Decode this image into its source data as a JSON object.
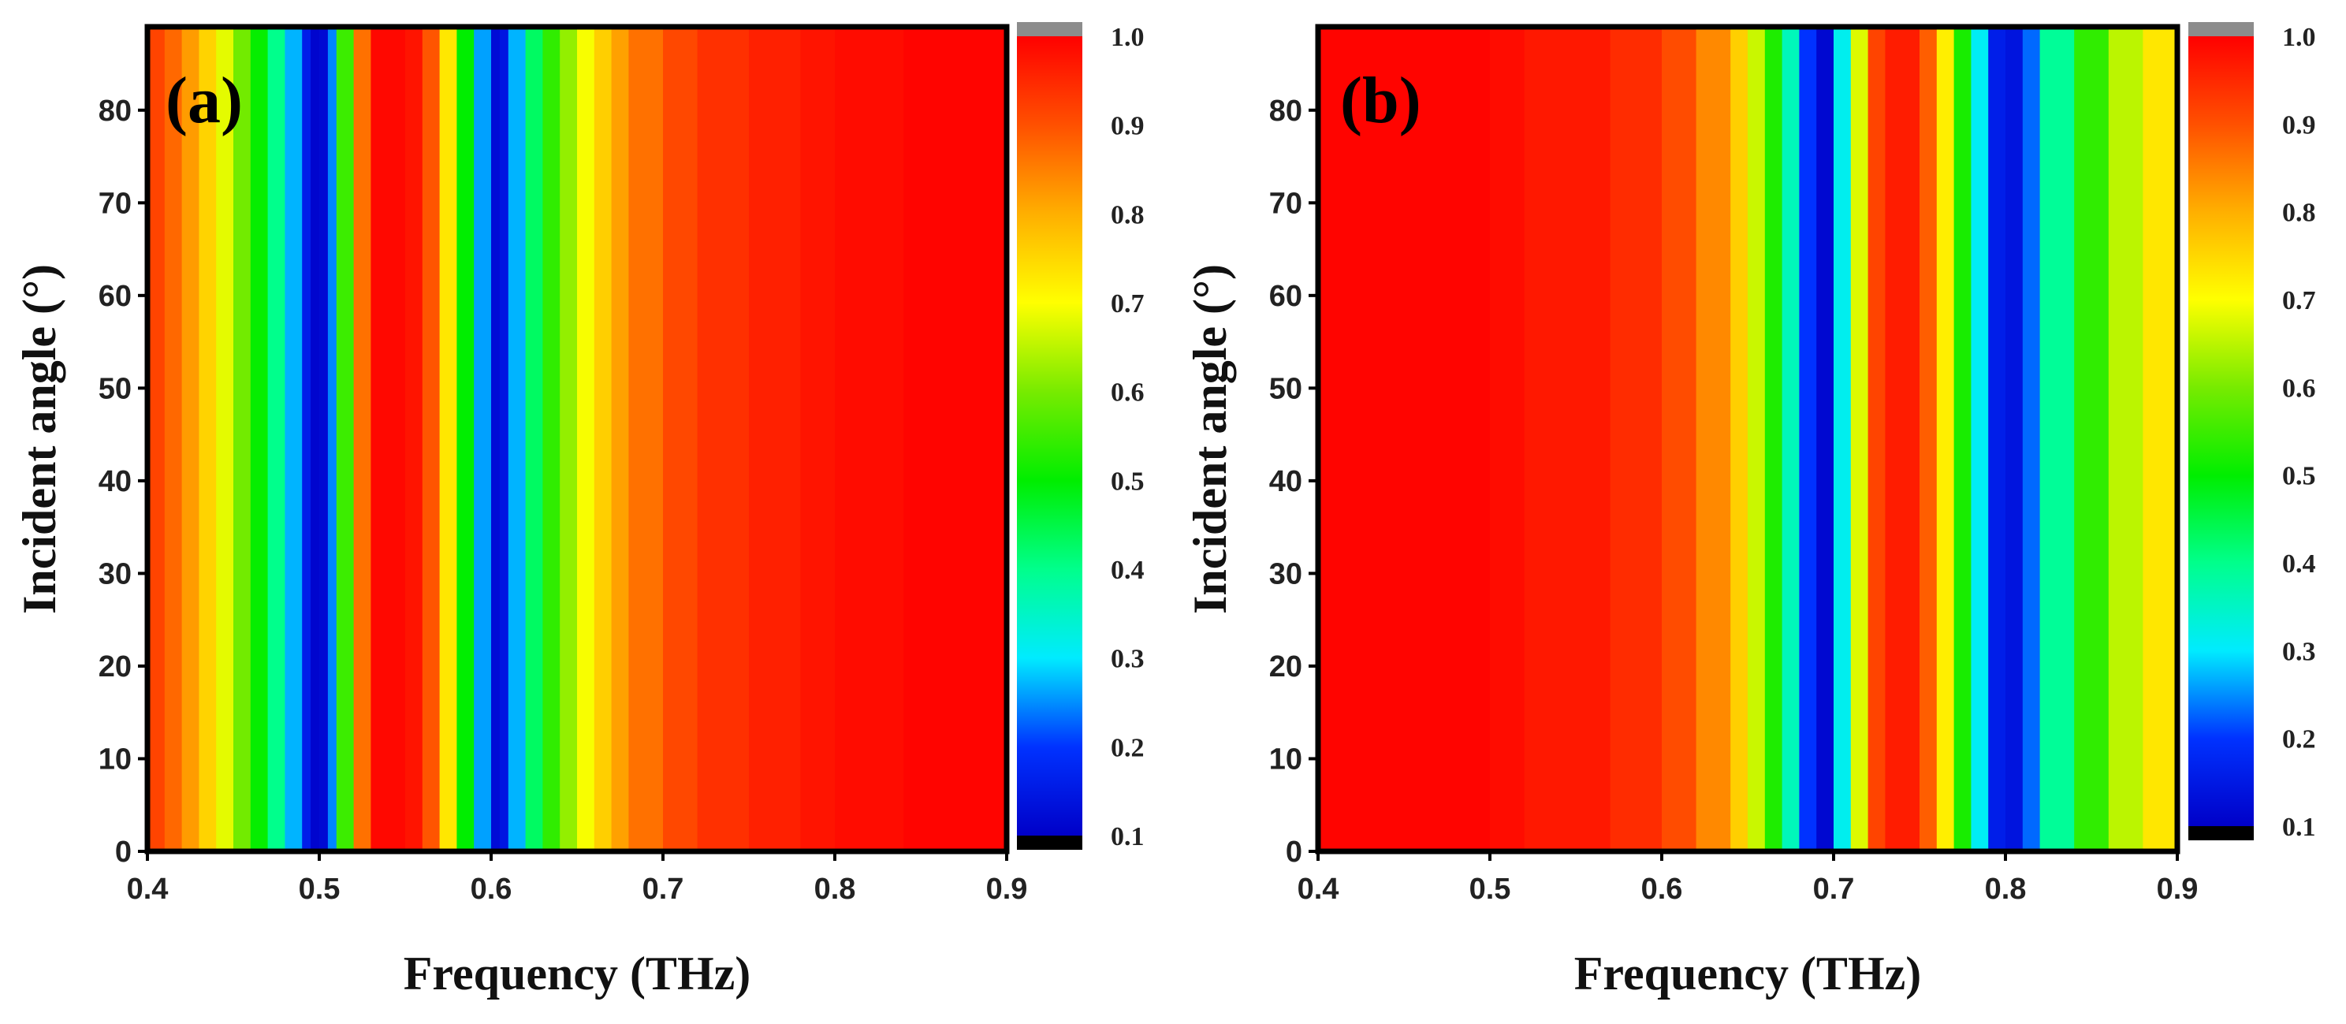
{
  "chart_data": [
    {
      "type": "heatmap",
      "panel_label": "(a)",
      "xlabel": "Frequency (THz)",
      "ylabel": "Incident angle (°)",
      "xlim": [
        0.4,
        0.9
      ],
      "ylim": [
        0,
        89
      ],
      "x_ticks": [
        "0.4",
        "0.5",
        "0.6",
        "0.7",
        "0.8",
        "0.9"
      ],
      "y_ticks": [
        "0",
        "10",
        "20",
        "30",
        "40",
        "50",
        "60",
        "70",
        "80"
      ],
      "colorbar": {
        "min": 0.1,
        "max": 1.0,
        "ticks": [
          "0.1",
          "0.2",
          "0.3",
          "0.4",
          "0.5",
          "0.6",
          "0.7",
          "0.8",
          "0.9",
          "1.0"
        ]
      },
      "profile_frequency": [
        0.4,
        0.41,
        0.42,
        0.43,
        0.44,
        0.45,
        0.46,
        0.47,
        0.48,
        0.49,
        0.495,
        0.5,
        0.505,
        0.51,
        0.52,
        0.53,
        0.55,
        0.56,
        0.57,
        0.58,
        0.59,
        0.6,
        0.605,
        0.61,
        0.62,
        0.63,
        0.64,
        0.65,
        0.66,
        0.67,
        0.68,
        0.7,
        0.72,
        0.75,
        0.78,
        0.8,
        0.84,
        0.9
      ],
      "profile_value": [
        0.93,
        0.9,
        0.85,
        0.79,
        0.72,
        0.64,
        0.55,
        0.46,
        0.34,
        0.2,
        0.12,
        0.1,
        0.14,
        0.35,
        0.75,
        0.98,
        1.0,
        0.95,
        0.84,
        0.62,
        0.38,
        0.14,
        0.11,
        0.18,
        0.36,
        0.5,
        0.58,
        0.66,
        0.73,
        0.79,
        0.84,
        0.89,
        0.93,
        0.95,
        0.97,
        0.98,
        0.99,
        1.0
      ]
    },
    {
      "type": "heatmap",
      "panel_label": "(b)",
      "xlabel": "Frequency (THz)",
      "ylabel": "Incident angle (°)",
      "xlim": [
        0.4,
        0.9
      ],
      "ylim": [
        0,
        89
      ],
      "x_ticks": [
        "0.4",
        "0.5",
        "0.6",
        "0.7",
        "0.8",
        "0.9"
      ],
      "y_ticks": [
        "0",
        "10",
        "20",
        "30",
        "40",
        "50",
        "60",
        "70",
        "80"
      ],
      "colorbar": {
        "min": 0.1,
        "max": 1.0,
        "ticks": [
          "0.1",
          "0.2",
          "0.3",
          "0.4",
          "0.5",
          "0.6",
          "0.7",
          "0.8",
          "0.9",
          "1.0"
        ]
      },
      "profile_frequency": [
        0.4,
        0.5,
        0.52,
        0.57,
        0.6,
        0.62,
        0.64,
        0.65,
        0.66,
        0.67,
        0.68,
        0.69,
        0.695,
        0.7,
        0.71,
        0.72,
        0.73,
        0.75,
        0.76,
        0.77,
        0.78,
        0.79,
        0.8,
        0.81,
        0.82,
        0.84,
        0.86,
        0.88,
        0.9
      ],
      "profile_value": [
        1.0,
        0.99,
        0.98,
        0.96,
        0.93,
        0.88,
        0.8,
        0.72,
        0.6,
        0.45,
        0.27,
        0.13,
        0.1,
        0.13,
        0.5,
        0.85,
        0.98,
        0.95,
        0.82,
        0.62,
        0.42,
        0.2,
        0.12,
        0.16,
        0.3,
        0.48,
        0.6,
        0.7,
        0.76
      ]
    }
  ]
}
